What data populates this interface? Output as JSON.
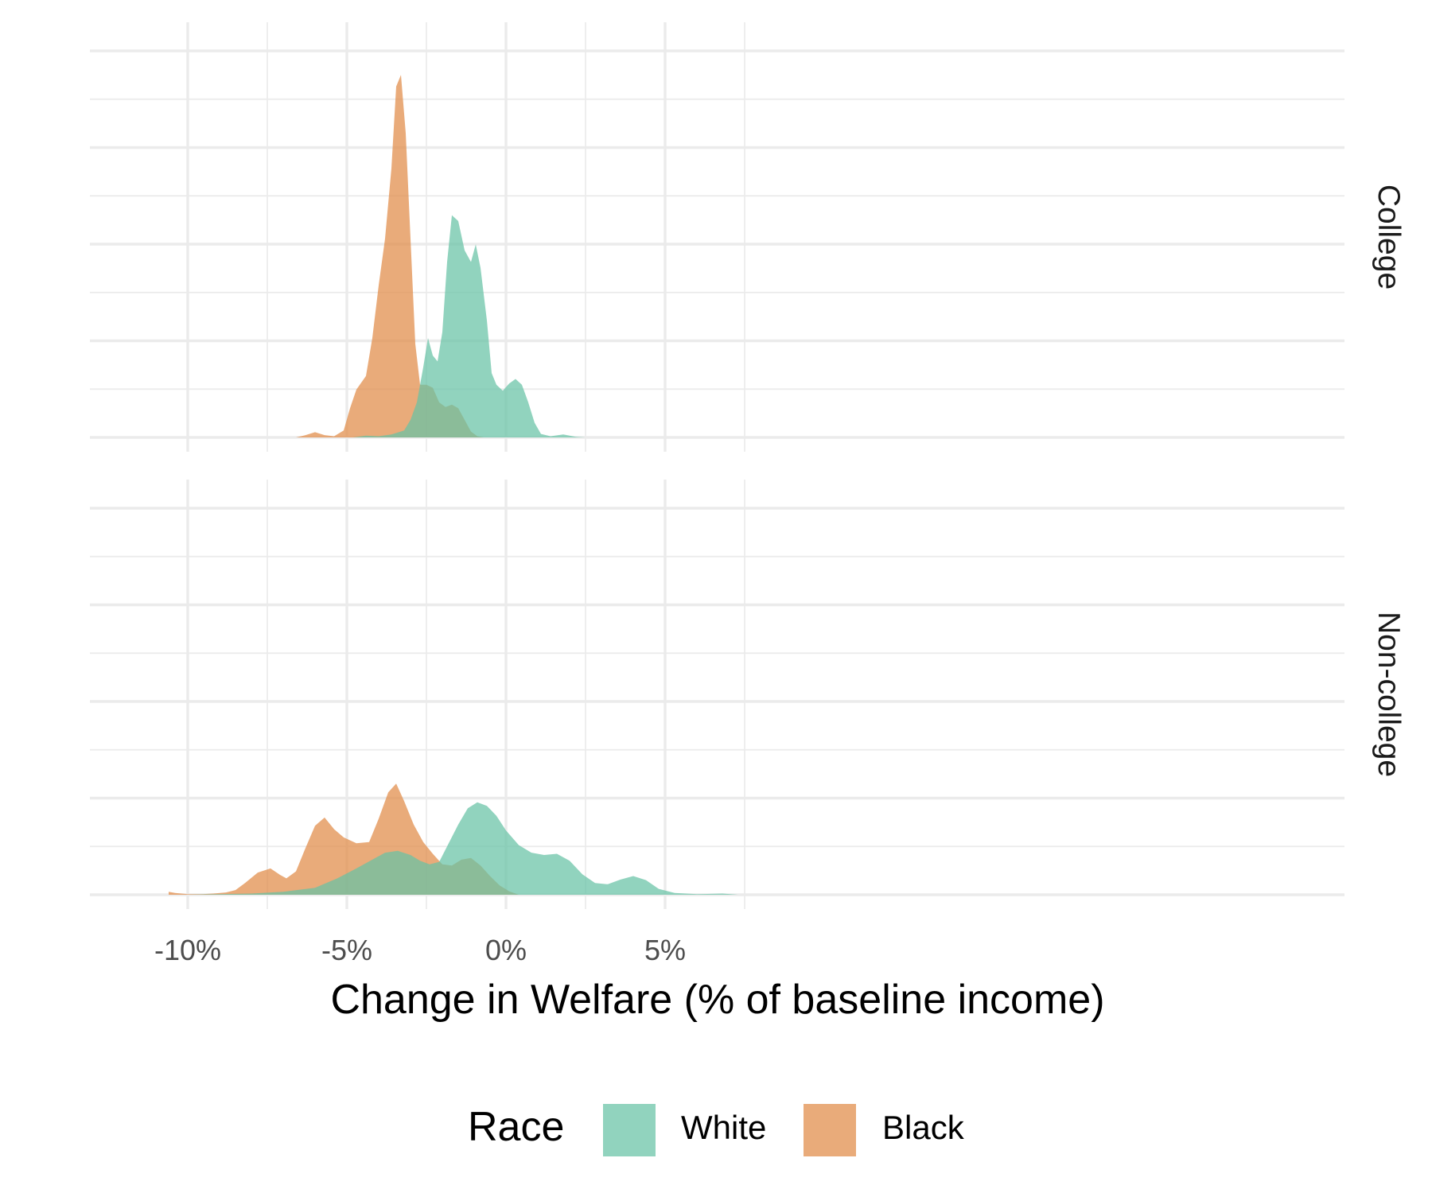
{
  "chart_data": {
    "type": "area",
    "xlabel": "Change in Welfare (% of baseline income)",
    "ylabel": "",
    "xlim": [
      -11.0,
      8.0
    ],
    "x_ticks": [
      -10,
      -5,
      0,
      5
    ],
    "x_tick_labels": [
      "-10%",
      "-5%",
      "0%",
      "5%"
    ],
    "grid": true,
    "legend": {
      "title": "Race",
      "position": "bottom",
      "entries": [
        {
          "name": "White",
          "color": "#66c2a5"
        },
        {
          "name": "Black",
          "color": "#e08a47"
        }
      ]
    },
    "fill_opacity": 0.72,
    "ylim": [
      0,
      0.65
    ],
    "panels": [
      {
        "label": "College",
        "series": [
          {
            "name": "Black",
            "color": "#e08a47",
            "x": [
              -6.6,
              -6.3,
              -6.0,
              -5.7,
              -5.4,
              -5.1,
              -4.9,
              -4.7,
              -4.4,
              -4.2,
              -4.0,
              -3.8,
              -3.6,
              -3.45,
              -3.3,
              -3.15,
              -3.0,
              -2.85,
              -2.7,
              -2.5,
              -2.3,
              -2.1,
              -1.9,
              -1.7,
              -1.5,
              -1.3,
              -1.1,
              -0.9,
              -0.7
            ],
            "y": [
              0.0,
              0.004,
              0.009,
              0.004,
              0.002,
              0.012,
              0.05,
              0.082,
              0.105,
              0.17,
              0.26,
              0.34,
              0.46,
              0.6,
              0.62,
              0.52,
              0.34,
              0.16,
              0.09,
              0.09,
              0.085,
              0.06,
              0.052,
              0.056,
              0.05,
              0.03,
              0.01,
              0.002,
              0.0
            ]
          },
          {
            "name": "White",
            "color": "#66c2a5",
            "x": [
              -4.8,
              -4.4,
              -4.0,
              -3.6,
              -3.2,
              -3.0,
              -2.8,
              -2.6,
              -2.45,
              -2.3,
              -2.15,
              -2.0,
              -1.85,
              -1.7,
              -1.5,
              -1.3,
              -1.1,
              -0.95,
              -0.8,
              -0.6,
              -0.45,
              -0.3,
              -0.1,
              0.1,
              0.3,
              0.5,
              0.7,
              0.9,
              1.1,
              1.4,
              1.8,
              2.2,
              2.5
            ],
            "y": [
              0.0,
              0.003,
              0.002,
              0.005,
              0.012,
              0.03,
              0.06,
              0.12,
              0.17,
              0.14,
              0.13,
              0.18,
              0.3,
              0.38,
              0.37,
              0.32,
              0.3,
              0.33,
              0.29,
              0.2,
              0.11,
              0.09,
              0.08,
              0.092,
              0.1,
              0.09,
              0.06,
              0.025,
              0.006,
              0.002,
              0.005,
              0.001,
              0.0
            ]
          }
        ]
      },
      {
        "label": "Non-college",
        "series": [
          {
            "name": "Black",
            "color": "#e08a47",
            "x": [
              -10.6,
              -10.4,
              -10.0,
              -9.6,
              -9.2,
              -8.8,
              -8.5,
              -8.2,
              -7.8,
              -7.4,
              -7.1,
              -6.9,
              -6.6,
              -6.3,
              -6.0,
              -5.7,
              -5.4,
              -5.1,
              -4.7,
              -4.3,
              -4.0,
              -3.7,
              -3.45,
              -3.2,
              -2.9,
              -2.6,
              -2.3,
              -2.0,
              -1.7,
              -1.4,
              -1.1,
              -0.8,
              -0.5,
              -0.2,
              0.1,
              0.4
            ],
            "y": [
              0.005,
              0.003,
              0.001,
              0.001,
              0.002,
              0.004,
              0.008,
              0.02,
              0.038,
              0.045,
              0.034,
              0.028,
              0.04,
              0.08,
              0.118,
              0.132,
              0.112,
              0.098,
              0.088,
              0.09,
              0.13,
              0.175,
              0.19,
              0.16,
              0.12,
              0.09,
              0.07,
              0.052,
              0.05,
              0.06,
              0.063,
              0.05,
              0.032,
              0.016,
              0.006,
              0.0
            ]
          },
          {
            "name": "White",
            "color": "#66c2a5",
            "x": [
              -10.0,
              -9.0,
              -8.0,
              -7.0,
              -6.0,
              -5.3,
              -4.7,
              -4.2,
              -3.8,
              -3.4,
              -3.0,
              -2.7,
              -2.4,
              -2.1,
              -1.8,
              -1.5,
              -1.2,
              -0.9,
              -0.6,
              -0.3,
              0.0,
              0.4,
              0.8,
              1.2,
              1.6,
              2.0,
              2.4,
              2.8,
              3.2,
              3.6,
              4.0,
              4.4,
              4.8,
              5.3,
              6.0,
              6.8,
              7.3
            ],
            "y": [
              0.0,
              0.001,
              0.002,
              0.005,
              0.012,
              0.028,
              0.045,
              0.06,
              0.072,
              0.075,
              0.068,
              0.058,
              0.052,
              0.056,
              0.088,
              0.12,
              0.148,
              0.158,
              0.152,
              0.135,
              0.11,
              0.085,
              0.072,
              0.068,
              0.07,
              0.058,
              0.035,
              0.02,
              0.018,
              0.026,
              0.032,
              0.025,
              0.01,
              0.003,
              0.001,
              0.002,
              0.0
            ]
          }
        ]
      }
    ]
  }
}
